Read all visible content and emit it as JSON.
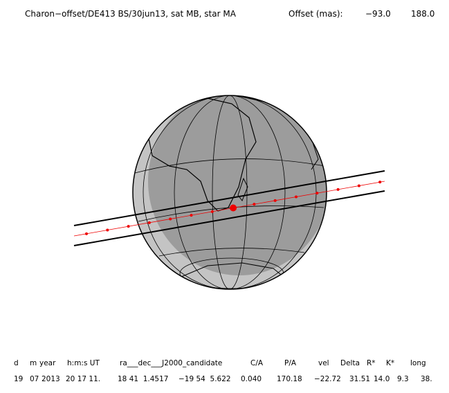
{
  "header": {
    "title": "Charon−offset/DE413 BS/30jun13, sat MB, star MA",
    "offset_label": "Offset (mas):",
    "offset_values": [
      "−93.0",
      "188.0"
    ]
  },
  "table": {
    "columns": [
      "d",
      "m",
      "year",
      "h:m:s UT",
      "ra___dec___J2000_candidate",
      "C/A",
      "P/A",
      "vel",
      "Delta",
      "R*",
      "K*",
      "long"
    ],
    "row": [
      "19",
      "07",
      "2013",
      "20 17 11.",
      "18 41  1.4517",
      "−19 54  5.622",
      "0.040",
      "170.18",
      "−22.72",
      "31.51",
      "14.0",
      "9.3",
      "38."
    ]
  }
}
